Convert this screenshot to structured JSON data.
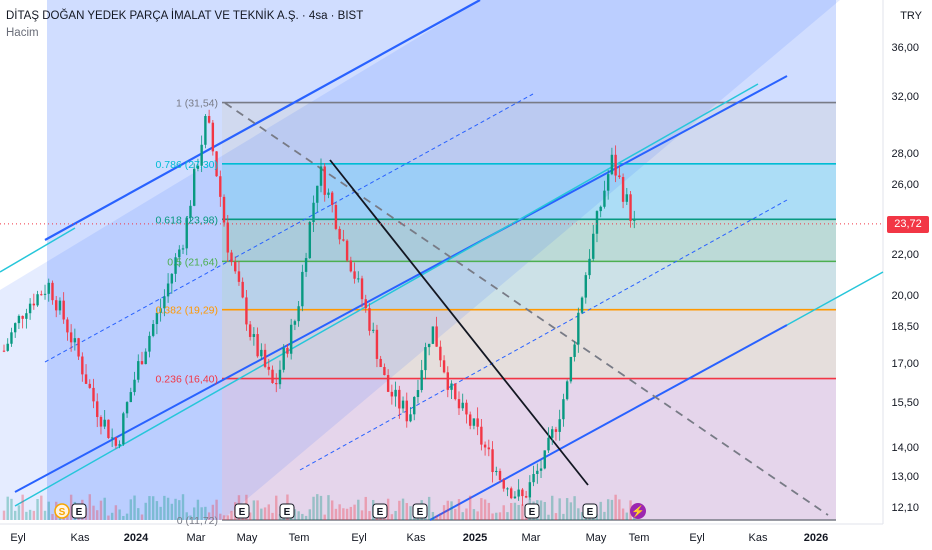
{
  "header": {
    "title": "DİTAŞ DOĞAN YEDEK PARÇA İMALAT VE TEKNİK A.Ş. · 4sa · BIST",
    "indicator": "Hacim",
    "currency": "TRY"
  },
  "price_axis": {
    "ticks": [
      "36,00",
      "32,00",
      "28,00",
      "26,00",
      "22,00",
      "20,00",
      "18,50",
      "17,00",
      "15,50",
      "14,00",
      "13,00",
      "12,10"
    ],
    "current_price": "23,72"
  },
  "time_axis": {
    "ticks": [
      "Eyl",
      "Kas",
      "2024",
      "Mar",
      "May",
      "Tem",
      "Eyl",
      "Kas",
      "2025",
      "Mar",
      "May",
      "Tem",
      "Eyl",
      "Kas",
      "2026"
    ]
  },
  "fib_levels": [
    {
      "ratio": "1",
      "price": "31,54",
      "label": "1 (31,54)",
      "color": "#787b86"
    },
    {
      "ratio": "0.786",
      "price": "27,30",
      "label": "0.786 (27,30)",
      "color": "#00bcd4"
    },
    {
      "ratio": "0.618",
      "price": "23,98",
      "label": "0.618 (23,98)",
      "color": "#089981"
    },
    {
      "ratio": "0.5",
      "price": "21,64",
      "label": "0.5 (21,64)",
      "color": "#4caf50"
    },
    {
      "ratio": "0.382",
      "price": "19,29",
      "label": "0.382 (19,29)",
      "color": "#ff9800"
    },
    {
      "ratio": "0.236",
      "price": "16,40",
      "label": "0.236 (16,40)",
      "color": "#f23645"
    },
    {
      "ratio": "0",
      "price": "11,72",
      "label": "0 (11,72)",
      "color": "#787b86"
    }
  ],
  "event_markers": [
    "S",
    "E",
    "E",
    "E",
    "E",
    "E",
    "E",
    "E"
  ],
  "colors": {
    "bull": "#089981",
    "bear": "#f23645",
    "channel": "#2962ff",
    "channel_fill": "#2962ff",
    "accent_price": "#f23645"
  },
  "chart_data": {
    "type": "candlestick",
    "title": "DİTAŞ DOĞAN YEDEK PARÇA İMALAT VE TEKNİK A.Ş. · 4sa · BIST",
    "ylabel": "TRY",
    "ylim": [
      11.7,
      38
    ],
    "x": [
      "Eyl",
      "Kas",
      "2024",
      "Mar",
      "May",
      "Tem",
      "Eyl",
      "Kas",
      "2025",
      "Mar",
      "May",
      "Tem"
    ],
    "close_path": [
      17.5,
      19.5,
      20.5,
      18.0,
      15.5,
      14.0,
      17.0,
      19.5,
      23.0,
      30.5,
      22.0,
      18.0,
      16.0,
      19.0,
      27.0,
      23.0,
      19.5,
      16.0,
      15.0,
      18.5,
      15.5,
      14.5,
      13.0,
      12.3,
      13.5,
      16.0,
      22.0,
      27.5,
      23.7
    ],
    "last_price": 23.72
  }
}
